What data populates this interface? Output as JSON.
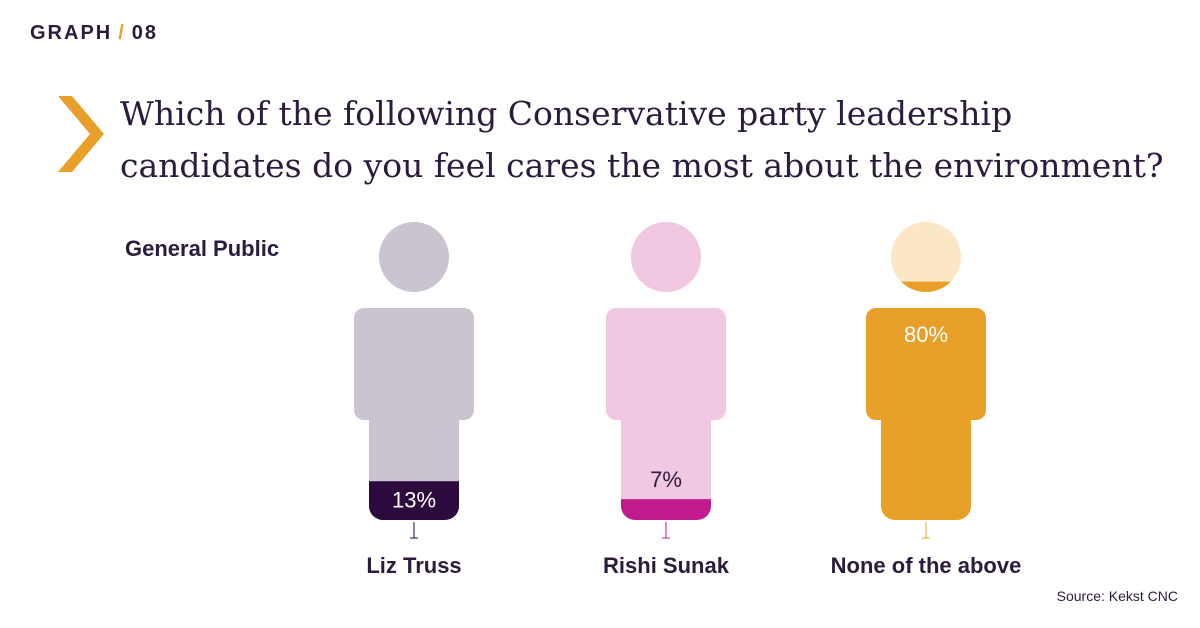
{
  "header": {
    "graph_word": "GRAPH",
    "separator": "/",
    "graph_number": "08"
  },
  "question": "Which of the following Conservative party leadership candidates do you feel cares the most about the environment?",
  "audience": "General Public",
  "source": "Source: Kekst CNC",
  "chart_data": {
    "type": "bar",
    "categories": [
      "Liz Truss",
      "Rishi Sunak",
      "None of the above"
    ],
    "values": [
      13,
      7,
      80
    ],
    "value_labels": [
      "13%",
      "7%",
      "80%"
    ],
    "unit": "%",
    "ylim": [
      0,
      100
    ],
    "colors": {
      "fill": [
        "#2c0a3d",
        "#c01a8c",
        "#e9a02a"
      ],
      "light": [
        "#c9c4d0",
        "#f0c8e2",
        "#fbe6c6"
      ]
    },
    "value_text_colors": [
      "#ffffff",
      "#2b1b3d",
      "#ffffff"
    ]
  }
}
